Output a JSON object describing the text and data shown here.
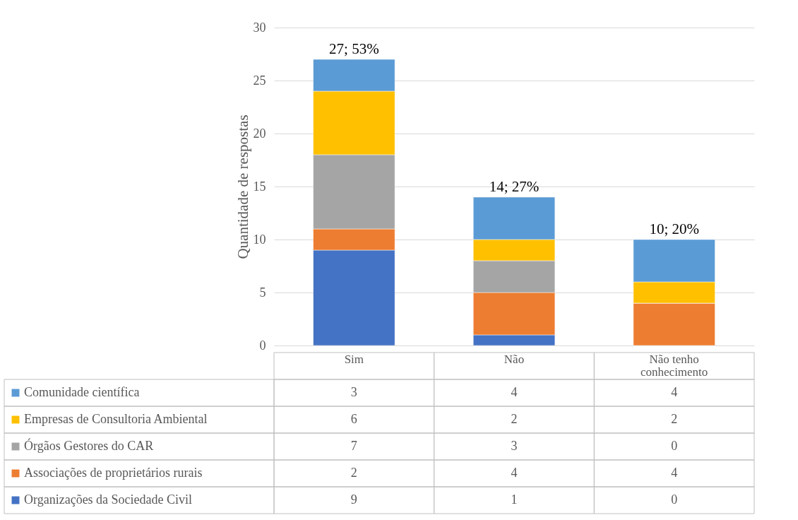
{
  "chart_data": {
    "type": "bar",
    "stacked": true,
    "ylabel": "Quantidade de respostas",
    "categories": [
      "Sim",
      "Não",
      "Não tenho conhecimento"
    ],
    "series": [
      {
        "name": "Organizações da Sociedade Civil",
        "color": "#4472c4",
        "values": [
          9,
          1,
          0
        ]
      },
      {
        "name": "Associações de proprietários rurais",
        "color": "#ed7d31",
        "values": [
          2,
          4,
          4
        ]
      },
      {
        "name": "Órgãos Gestores do CAR",
        "color": "#a5a5a5",
        "values": [
          7,
          3,
          0
        ]
      },
      {
        "name": "Empresas de Consultoria Ambiental",
        "color": "#ffc000",
        "values": [
          6,
          2,
          2
        ]
      },
      {
        "name": "Comunidade científica",
        "color": "#5b9bd5",
        "values": [
          3,
          4,
          4
        ]
      }
    ],
    "totals": [
      "27; 53%",
      "14; 27%",
      "10; 20%"
    ],
    "ylim": [
      0,
      30
    ],
    "yticks": [
      0,
      5,
      10,
      15,
      20,
      25,
      30
    ],
    "grid": "y",
    "legend": "bottom",
    "data_labels": true
  }
}
